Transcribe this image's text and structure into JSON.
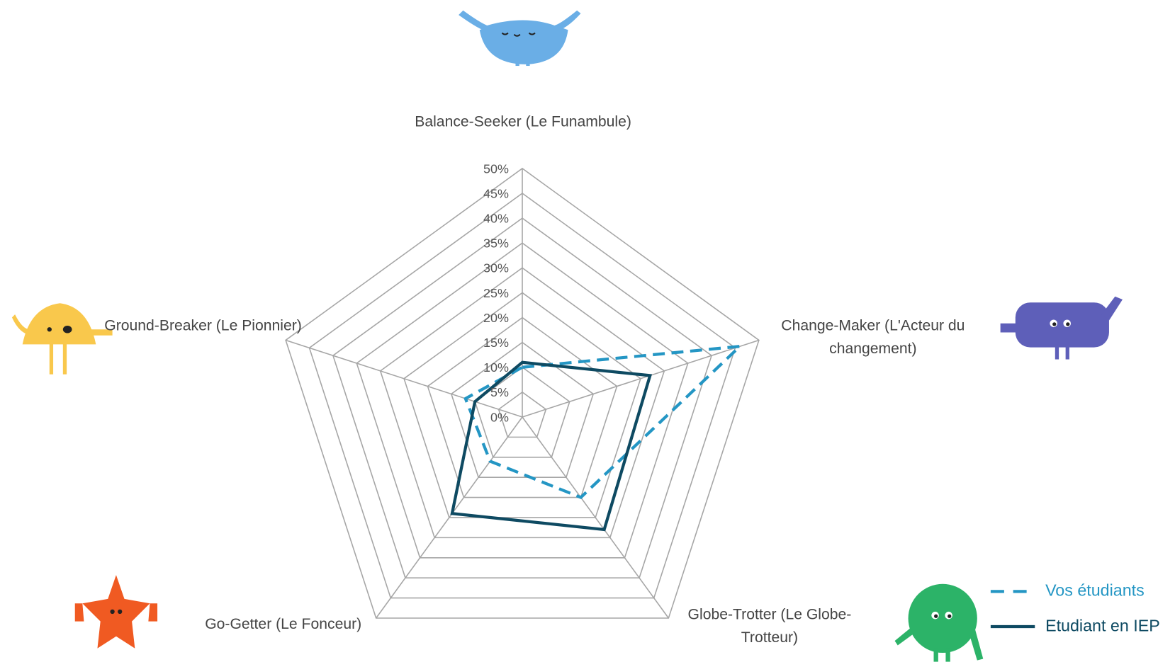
{
  "chart_data": {
    "type": "radar",
    "categories": [
      "Balance-Seeker (Le Funambule)",
      "Change-Maker (L'Acteur du changement)",
      "Globe-Trotter (Le Globe-Trotteur)",
      "Go-Getter (Le Fonceur)",
      "Ground-Breaker (Le Pionnier)"
    ],
    "series": [
      {
        "name": "Vos étudiants",
        "color": "#2496c4",
        "dashed": true,
        "values": [
          10,
          46,
          20,
          11,
          12
        ]
      },
      {
        "name": "Etudiant en IEP",
        "color": "#0e4a62",
        "dashed": false,
        "values": [
          11,
          27,
          28,
          24,
          10
        ]
      }
    ],
    "ylim": [
      0,
      50
    ],
    "yticks": [
      {
        "value": 0,
        "label": "0%"
      },
      {
        "value": 5,
        "label": "5%"
      },
      {
        "value": 10,
        "label": "10%"
      },
      {
        "value": 15,
        "label": "15%"
      },
      {
        "value": 20,
        "label": "20%"
      },
      {
        "value": 25,
        "label": "25%"
      },
      {
        "value": 30,
        "label": "30%"
      },
      {
        "value": 35,
        "label": "35%"
      },
      {
        "value": 40,
        "label": "40%"
      },
      {
        "value": 45,
        "label": "45%"
      },
      {
        "value": 50,
        "label": "50%"
      }
    ],
    "grid": true,
    "legend": "bottom-right"
  }
}
